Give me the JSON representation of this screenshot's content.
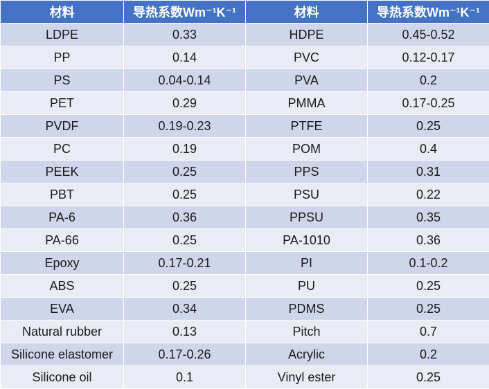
{
  "colors": {
    "header": "#4472c4",
    "row_odd": "#cfd5ea",
    "row_even": "#e9ebf5"
  },
  "headers": [
    "材料",
    "导热系数Wm⁻¹K⁻¹",
    "材料",
    "导热系数Wm⁻¹K⁻¹"
  ],
  "rows": [
    [
      "LDPE",
      "0.33",
      "HDPE",
      "0.45-0.52"
    ],
    [
      "PP",
      "0.14",
      "PVC",
      "0.12-0.17"
    ],
    [
      "PS",
      "0.04-0.14",
      "PVA",
      "0.2"
    ],
    [
      "PET",
      "0.29",
      "PMMA",
      "0.17-0.25"
    ],
    [
      "PVDF",
      "0.19-0.23",
      "PTFE",
      "0.25"
    ],
    [
      "PC",
      "0.19",
      "POM",
      "0.4"
    ],
    [
      "PEEK",
      "0.25",
      "PPS",
      "0.31"
    ],
    [
      "PBT",
      "0.25",
      "PSU",
      "0.22"
    ],
    [
      "PA-6",
      "0.36",
      "PPSU",
      "0.35"
    ],
    [
      "PA-66",
      "0.25",
      "PA-1010",
      "0.36"
    ],
    [
      "Epoxy",
      "0.17-0.21",
      "PI",
      "0.1-0.2"
    ],
    [
      "ABS",
      "0.25",
      "PU",
      "0.25"
    ],
    [
      "EVA",
      "0.34",
      "PDMS",
      "0.25"
    ],
    [
      "Natural rubber",
      "0.13",
      "Pitch",
      "0.7"
    ],
    [
      "Silicone elastomer",
      "0.17-0.26",
      "Acrylic",
      "0.2"
    ],
    [
      "Silicone oil",
      "0.1",
      "Vinyl ester",
      "0.25"
    ]
  ]
}
